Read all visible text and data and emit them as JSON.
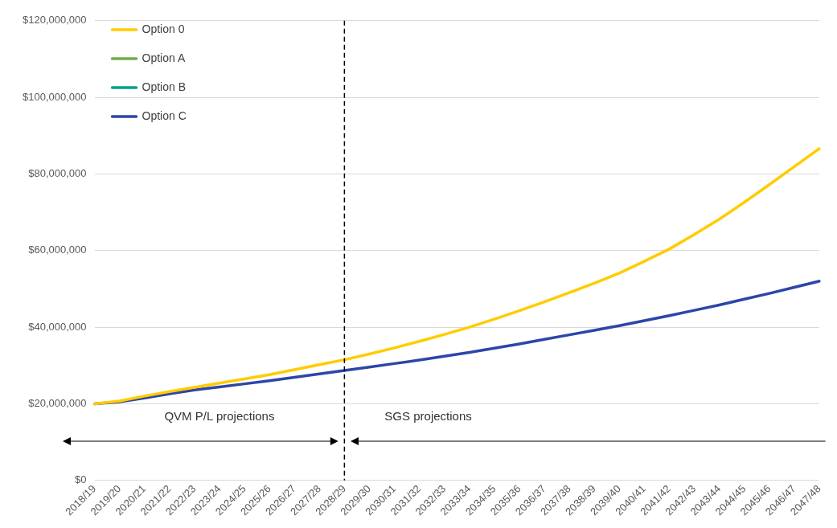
{
  "chart_data": {
    "type": "line",
    "categories": [
      "2018/19",
      "2019/20",
      "2020/21",
      "2021/22",
      "2022/23",
      "2023/24",
      "2024/25",
      "2025/26",
      "2026/27",
      "2027/28",
      "2028/29",
      "2029/30",
      "2030/31",
      "2031/32",
      "2032/33",
      "2033/34",
      "2034/35",
      "2035/36",
      "2036/37",
      "2037/38",
      "2038/39",
      "2039/40",
      "2040/41",
      "2041/42",
      "2042/43",
      "2043/44",
      "2044/45",
      "2045/46",
      "2046/47",
      "2047/48"
    ],
    "series": [
      {
        "name": "Option 0",
        "color": "#ffcc00",
        "values": [
          20000000,
          20700000,
          22000000,
          23200000,
          24300000,
          25400000,
          26500000,
          27600000,
          28900000,
          30200000,
          31500000,
          33000000,
          34600000,
          36300000,
          38100000,
          40000000,
          42100000,
          44300000,
          46600000,
          49000000,
          51500000,
          54100000,
          57200000,
          60400000,
          64200000,
          68200000,
          72600000,
          77200000,
          81900000,
          86600000
        ]
      },
      {
        "name": "Option A",
        "color": "#70ad47",
        "values": [
          null,
          null,
          null,
          null,
          null,
          null,
          null,
          null,
          null,
          null,
          null,
          null,
          null,
          null,
          null,
          null,
          null,
          null,
          null,
          null,
          null,
          null,
          null,
          null,
          null,
          null,
          null,
          null,
          null,
          null
        ]
      },
      {
        "name": "Option B",
        "color": "#00a28a",
        "values": [
          null,
          null,
          null,
          null,
          null,
          null,
          null,
          null,
          null,
          null,
          null,
          null,
          null,
          null,
          null,
          null,
          null,
          null,
          null,
          null,
          null,
          null,
          null,
          null,
          null,
          null,
          null,
          null,
          null,
          null
        ]
      },
      {
        "name": "Option C",
        "color": "#2e45a8",
        "values": [
          20000000,
          20500000,
          21500000,
          22600000,
          23600000,
          24400000,
          25200000,
          26000000,
          26900000,
          27800000,
          28700000,
          29600000,
          30500000,
          31400000,
          32400000,
          33400000,
          34500000,
          35600000,
          36800000,
          38000000,
          39200000,
          40400000,
          41700000,
          43000000,
          44400000,
          45800000,
          47300000,
          48800000,
          50400000,
          52000000
        ]
      }
    ],
    "ylim": [
      0,
      120000000
    ],
    "yticks": [
      {
        "value": 0,
        "label": "$0"
      },
      {
        "value": 20000000,
        "label": "$20,000,000"
      },
      {
        "value": 40000000,
        "label": "$40,000,000"
      },
      {
        "value": 60000000,
        "label": "$60,000,000"
      },
      {
        "value": 80000000,
        "label": "$80,000,000"
      },
      {
        "value": 100000000,
        "label": "$100,000,000"
      },
      {
        "value": 120000000,
        "label": "$120,000,000"
      }
    ],
    "grid": "y",
    "legend": "top left",
    "marker": "none",
    "line_style": "solid",
    "ref_lines": [
      {
        "axis": "x",
        "value": "2028/29",
        "color": "#000000",
        "line_style": "dashed"
      }
    ],
    "annotations": [
      "QVM P/L projections",
      "SGS projections"
    ]
  }
}
